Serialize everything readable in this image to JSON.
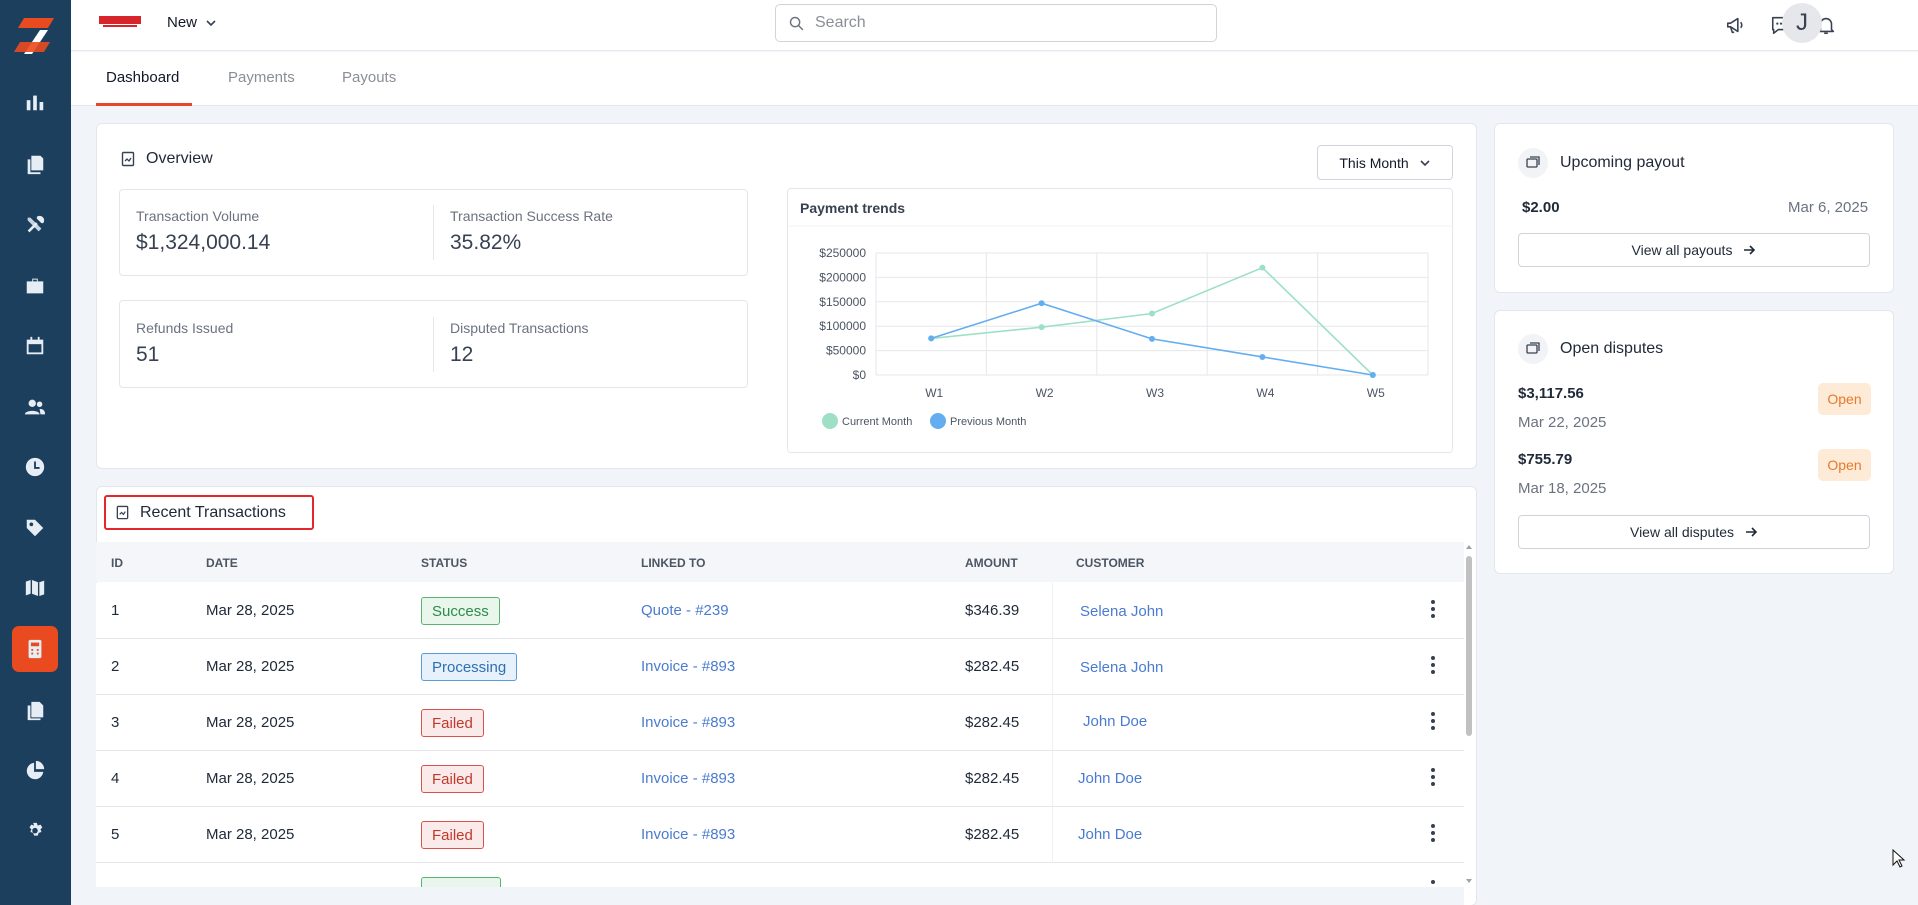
{
  "sidebar": {
    "items": [
      {
        "icon": "bar-chart-icon",
        "active": false
      },
      {
        "icon": "documents-icon",
        "active": false
      },
      {
        "icon": "tools-icon",
        "active": false
      },
      {
        "icon": "briefcase-icon",
        "active": false
      },
      {
        "icon": "calendar-icon",
        "active": false
      },
      {
        "icon": "users-icon",
        "active": false
      },
      {
        "icon": "clock-icon",
        "active": false
      },
      {
        "icon": "tag-icon",
        "active": false
      },
      {
        "icon": "map-icon",
        "active": false
      },
      {
        "icon": "calculator-icon",
        "active": true
      },
      {
        "icon": "files-icon",
        "active": false
      },
      {
        "icon": "pie-chart-icon",
        "active": false
      },
      {
        "icon": "settings-icon",
        "active": false
      }
    ],
    "accent": "#ea4a1f",
    "bg": "#1c3f5e"
  },
  "topbar": {
    "new_label": "New",
    "search_placeholder": "Search",
    "avatar_initial": "J"
  },
  "tabs": [
    {
      "label": "Dashboard",
      "active": true
    },
    {
      "label": "Payments",
      "active": false
    },
    {
      "label": "Payouts",
      "active": false
    }
  ],
  "overview": {
    "title": "Overview",
    "period_label": "This Month",
    "stats": [
      {
        "label": "Transaction Volume",
        "value": "$1,324,000.14"
      },
      {
        "label": "Transaction Success Rate",
        "value": "35.82%"
      },
      {
        "label": "Refunds Issued",
        "value": "51"
      },
      {
        "label": "Disputed Transactions",
        "value": "12"
      }
    ]
  },
  "chart_data": {
    "type": "line",
    "title": "Payment trends",
    "categories": [
      "W1",
      "W2",
      "W3",
      "W4",
      "W5"
    ],
    "series": [
      {
        "name": "Current Month",
        "color": "#9ee0c6",
        "values": [
          75000,
          98000,
          126000,
          220000,
          0
        ]
      },
      {
        "name": "Previous Month",
        "color": "#64aef0",
        "values": [
          75000,
          147000,
          74000,
          37000,
          0
        ]
      }
    ],
    "y_ticks": [
      "$0",
      "$50000",
      "$100000",
      "$150000",
      "$200000",
      "$250000"
    ],
    "ylim": [
      0,
      250000
    ],
    "grid": true,
    "legend": "bottom-left"
  },
  "transactions": {
    "title": "Recent Transactions",
    "columns": [
      "ID",
      "DATE",
      "STATUS",
      "LINKED TO",
      "AMOUNT",
      "CUSTOMER"
    ],
    "rows": [
      {
        "id": "1",
        "date": "Mar 28, 2025",
        "status": "Success",
        "status_type": "success",
        "linked": "Quote - #239",
        "amount": "$346.39",
        "customer": "Selena John"
      },
      {
        "id": "2",
        "date": "Mar 28, 2025",
        "status": "Processing",
        "status_type": "processing",
        "linked": "Invoice - #893",
        "amount": "$282.45",
        "customer": "Selena John"
      },
      {
        "id": "3",
        "date": "Mar 28, 2025",
        "status": "Failed",
        "status_type": "failed",
        "linked": "Invoice - #893",
        "amount": "$282.45",
        "customer": "John Doe"
      },
      {
        "id": "4",
        "date": "Mar 28, 2025",
        "status": "Failed",
        "status_type": "failed",
        "linked": "Invoice - #893",
        "amount": "$282.45",
        "customer": "John Doe"
      },
      {
        "id": "5",
        "date": "Mar 28, 2025",
        "status": "Failed",
        "status_type": "failed",
        "linked": "Invoice - #893",
        "amount": "$282.45",
        "customer": "John Doe"
      }
    ]
  },
  "upcoming_payout": {
    "title": "Upcoming payout",
    "amount": "$2.00",
    "date": "Mar 6, 2025",
    "button_label": "View all payouts"
  },
  "disputes": {
    "title": "Open disputes",
    "items": [
      {
        "amount": "$3,117.56",
        "date": "Mar 22, 2025",
        "status": "Open"
      },
      {
        "amount": "$755.79",
        "date": "Mar 18, 2025",
        "status": "Open"
      }
    ],
    "button_label": "View all disputes"
  }
}
